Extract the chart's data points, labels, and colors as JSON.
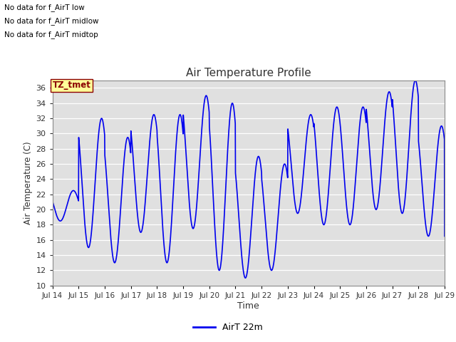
{
  "title": "Air Temperature Profile",
  "xlabel": "Time",
  "ylabel": "Air Temperature (C)",
  "ylim": [
    10,
    37
  ],
  "yticks": [
    10,
    12,
    14,
    16,
    18,
    20,
    22,
    24,
    26,
    28,
    30,
    32,
    34,
    36
  ],
  "line_color": "#0000EE",
  "line_width": 1.2,
  "bg_color": "#E0E0E0",
  "legend_label": "AirT 22m",
  "no_data_texts": [
    "No data for f_AirT low",
    "No data for f_AirT midlow",
    "No data for f_AirT midtop"
  ],
  "tz_label": "TZ_tmet",
  "xtick_days": [
    14,
    15,
    16,
    17,
    18,
    19,
    20,
    21,
    22,
    23,
    24,
    25,
    26,
    27,
    28,
    29
  ],
  "day_params": {
    "14": [
      18.5,
      22.5,
      0.3
    ],
    "15": [
      15.0,
      32.0,
      0.38
    ],
    "16": [
      13.0,
      29.5,
      0.38
    ],
    "17": [
      17.0,
      32.5,
      0.38
    ],
    "18": [
      13.0,
      32.5,
      0.38
    ],
    "19": [
      17.5,
      35.0,
      0.38
    ],
    "20": [
      12.0,
      34.0,
      0.38
    ],
    "21": [
      11.0,
      27.0,
      0.38
    ],
    "22": [
      12.0,
      26.0,
      0.38
    ],
    "23": [
      19.5,
      32.5,
      0.38
    ],
    "24": [
      18.0,
      33.5,
      0.38
    ],
    "25": [
      18.0,
      33.5,
      0.38
    ],
    "26": [
      20.0,
      35.5,
      0.38
    ],
    "27": [
      19.5,
      37.0,
      0.38
    ],
    "28": [
      16.5,
      31.0,
      0.38
    ],
    "29": [
      16.5,
      16.5,
      0.38
    ]
  }
}
